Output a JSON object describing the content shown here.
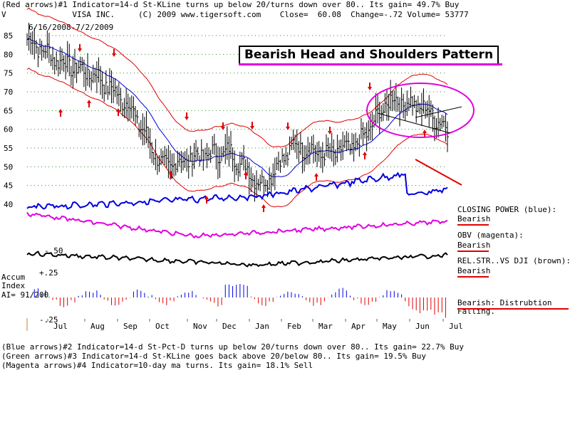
{
  "header": {
    "line1": "(Red arrows)#1 Indicator=14-d St-KLine turns up below 20/turns down over 80.. Its gain= 49.7% Buy",
    "line2": "V              VISA INC.     (C) 2009 www.tigersoft.com    Close=  60.08  Change=-.72 Volume= 53777",
    "date_range": "6/16/2008-7/2/2009"
  },
  "annotation_title": "Bearish Head and Shoulders Pattern",
  "legend": {
    "closing_power_label": "CLOSING POWER (blue):",
    "closing_power_value": "Bearish",
    "obv_label": "OBV (magenta):",
    "obv_value": "Bearish",
    "relstr_label": "REL.STR..VS DJI (brown):",
    "relstr_value": "Bearish",
    "accum_value": "Bearish: Distrubtion Falling."
  },
  "accum_panel": {
    "label_line1": "Accum",
    "label_line2": "Index",
    "label_line3": "AI= 91/200",
    "tick_top": "+.25",
    "tick_bottom": "-.25",
    "tick_mid": "-.50"
  },
  "footer": {
    "line1": "(Blue arrows)#2 Indicator=14-d St-Pct-D turns up below 20/turns down over 80.. Its gain= 22.7% Buy",
    "line2": "(Green arrows)#3 Indicator=14-d St-KLine goes back above 20/below 80.. Its gain= 19.5% Buy",
    "line3": "(Magenta arrows)#4 Indicator=10-day ma turns. Its gain= 18.1% Sell"
  },
  "colors": {
    "price": "#000000",
    "bands": "#e00000",
    "ma": "#0000e0",
    "closing_power": "#0000e0",
    "obv": "#e000e0",
    "relstr": "#000000",
    "accum_pos": "#0000e0",
    "accum_neg": "#e00000",
    "arrows": "#e00000",
    "grid": "#2e8b2e",
    "ellipse": "#e000e0"
  },
  "chart_data": {
    "type": "line",
    "title": "VISA INC.",
    "xlabel": "",
    "ylabel": "",
    "ylim": [
      40,
      85
    ],
    "y_ticks": [
      40,
      45,
      50,
      55,
      60,
      65,
      70,
      75,
      80,
      85
    ],
    "x_ticks": [
      "Jul",
      "Aug",
      "Sep",
      "Oct",
      "Nov",
      "Dec",
      "Jan",
      "Feb",
      "Mar",
      "Apr",
      "May",
      "Jun",
      "Jul"
    ],
    "grid": true,
    "series": [
      {
        "name": "",
        "months": [
          "Jun",
          "Jul",
          "Aug",
          "Sep",
          "Oct",
          "Nov",
          "Dec",
          "Jan",
          "Feb",
          "Mar",
          "Apr",
          "May",
          "Jun",
          "Jul"
        ],
        "values": [
          84,
          78,
          74,
          66,
          50,
          53,
          54,
          45,
          56,
          53,
          56,
          68,
          66,
          60
        ]
      }
    ]
  }
}
